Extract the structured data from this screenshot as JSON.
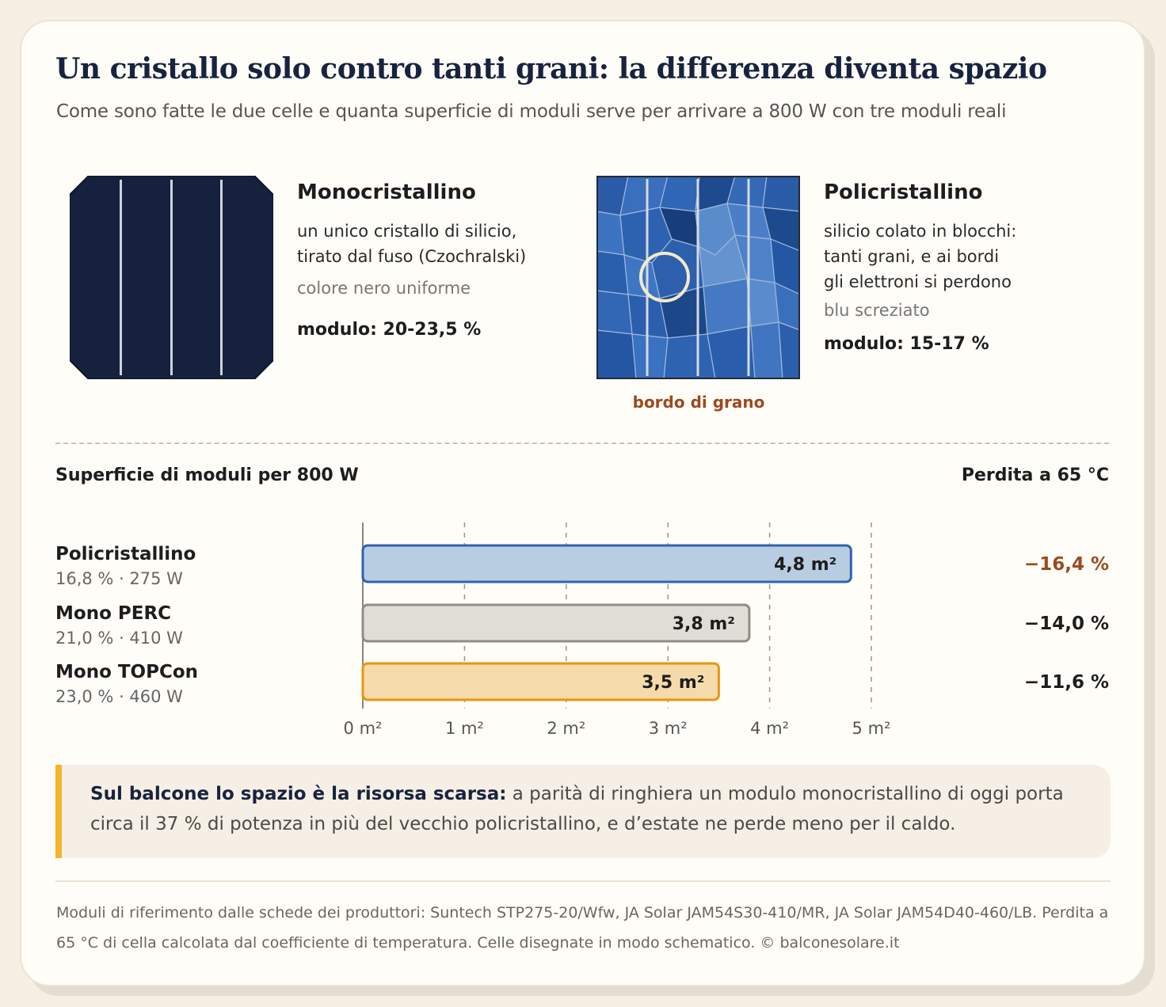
{
  "header": {
    "title": "Un cristallo solo contro tanti grani: la differenza diventa spazio",
    "subtitle": "Come sono fatte le due celle e quanta superficie di moduli serve per arrivare a 800 W con tre moduli reali"
  },
  "mono": {
    "name": "Monocristallino",
    "desc_line1": "un unico cristallo di silicio,",
    "desc_line2": "tirato dal fuso (Czochralski)",
    "color_note": "colore nero uniforme",
    "efficiency": "modulo: 20-23,5 %",
    "cell_color": "#15213d"
  },
  "poly": {
    "name": "Policristallino",
    "desc_line1": "silicio colato in blocchi:",
    "desc_line2": "tanti grani, e ai bordi",
    "desc_line3": "gli elettroni si perdono",
    "color_note": "blu screziato",
    "efficiency": "modulo: 15-17 %",
    "grain_boundary_label": "bordo di grano",
    "cell_color": "#2f62b0"
  },
  "chart_section": {
    "title": "Superficie di moduli per 800 W",
    "loss_title": "Perdita a 65 °C"
  },
  "chart_data": {
    "type": "bar",
    "orientation": "horizontal",
    "categories": [
      "Policristallino",
      "Mono PERC",
      "Mono TOPCon"
    ],
    "sublabels": [
      "16,8 % · 275 W",
      "21,0 % · 410 W",
      "23,0 % · 460 W"
    ],
    "values": [
      4.8,
      3.8,
      3.5
    ],
    "value_labels": [
      "4,8 m²",
      "3,8 m²",
      "3,5 m²"
    ],
    "losses": [
      "−16,4 %",
      "−14,0 %",
      "−11,6 %"
    ],
    "xlim": [
      0,
      5
    ],
    "xticks": [
      "0 m²",
      "1 m²",
      "2 m²",
      "3 m²",
      "4 m²",
      "5 m²"
    ],
    "grid": true,
    "colors": {
      "fills": [
        "#b9cde2",
        "#deddd6",
        "#f5dbaa"
      ],
      "strokes": [
        "#2f62b0",
        "#8f8d86",
        "#e8960f"
      ],
      "loss_highlight": "#9b4a1f",
      "loss_default": "#1d1d1d"
    }
  },
  "callout": {
    "bold": "Sul balcone lo spazio è la risorsa scarsa:",
    "text": " a parità di ringhiera un modulo monocristallino di oggi porta circa il 37 % di potenza in più del vecchio policristallino, e d’estate ne perde meno per il caldo.",
    "accent": "#f3b52c"
  },
  "footer": {
    "text": "Moduli di riferimento dalle schede dei produttori: Suntech STP275-20/Wfw, JA Solar JAM54S30-410/MR, JA Solar JAM54D40-460/LB. Perdita a 65 °C di cella calcolata dal coefficiente di temperatura. Celle disegnate in modo schematico. © balconesolare.it"
  }
}
